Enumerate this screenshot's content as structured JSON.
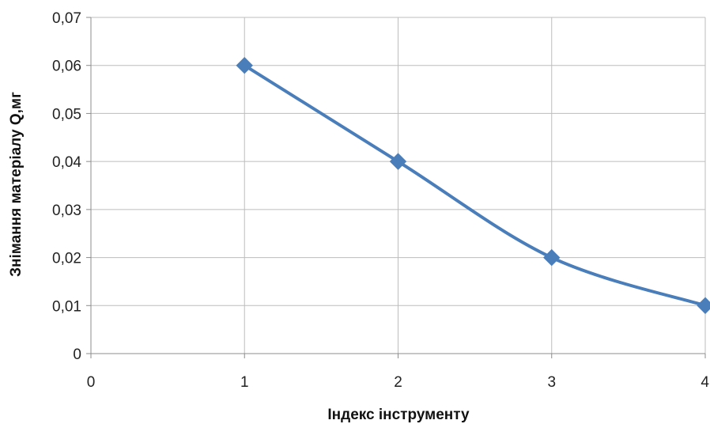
{
  "chart_data": {
    "type": "line",
    "title": "",
    "xlabel": "Індекс інструменту",
    "ylabel": "Знімання матеріалу Q,мг",
    "xlim": [
      0,
      4
    ],
    "ylim": [
      0,
      0.07
    ],
    "x_ticks": [
      0,
      1,
      2,
      3,
      4
    ],
    "x_tick_labels": [
      "0",
      "1",
      "2",
      "3",
      "4"
    ],
    "y_ticks": [
      0,
      0.01,
      0.02,
      0.03,
      0.04,
      0.05,
      0.06,
      0.07
    ],
    "y_tick_labels": [
      "0",
      "0,01",
      "0,02",
      "0,03",
      "0,04",
      "0,05",
      "0,06",
      "0,07"
    ],
    "grid": true,
    "legend": "none",
    "smooth": true,
    "series": [
      {
        "x": [
          1,
          2,
          3,
          4
        ],
        "values": [
          0.06,
          0.04,
          0.02,
          0.01
        ],
        "color": "#4a7ebb",
        "marker": "diamond"
      }
    ]
  }
}
